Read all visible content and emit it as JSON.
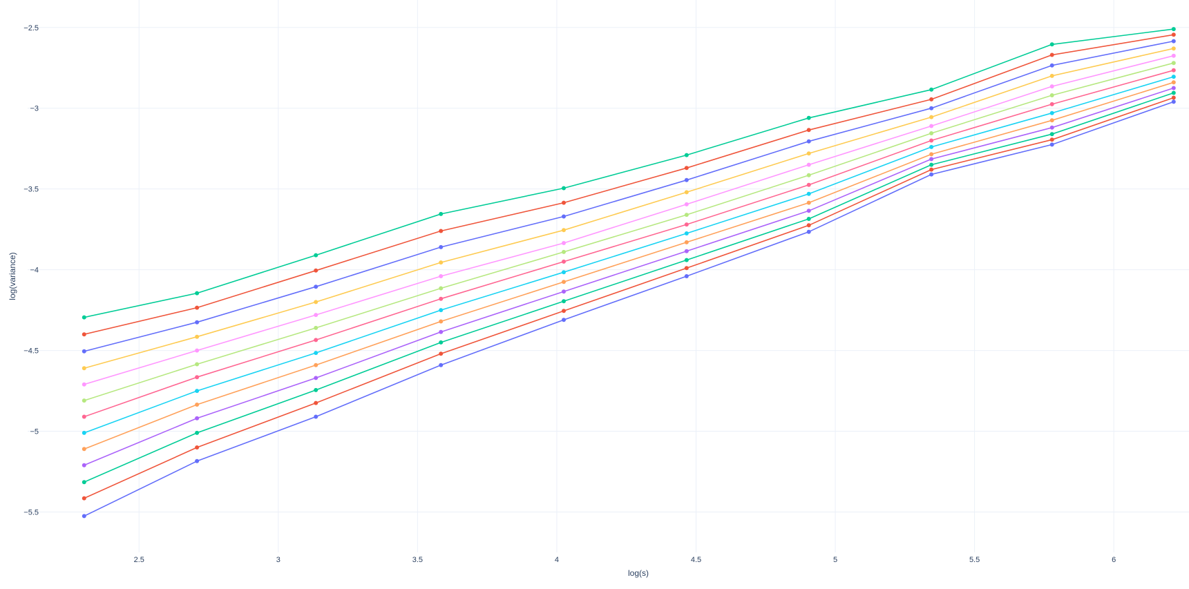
{
  "chart_data": {
    "type": "line",
    "xlabel": "log(s)",
    "ylabel": "log(variance)",
    "xlim": [
      2.1,
      6.27
    ],
    "ylim": [
      -5.75,
      -2.33
    ],
    "x_ticks": [
      2.5,
      3,
      3.5,
      4,
      4.5,
      5,
      5.5,
      6
    ],
    "x_tick_labels": [
      "2.5",
      "3",
      "3.5",
      "4",
      "4.5",
      "5",
      "5.5",
      "6"
    ],
    "y_ticks": [
      -2.5,
      -3,
      -3.5,
      -4,
      -4.5,
      -5,
      -5.5
    ],
    "y_tick_labels": [
      "−2.5",
      "−3",
      "−3.5",
      "−4",
      "−4.5",
      "−5",
      "−5.5"
    ],
    "grid": true,
    "legend": "none",
    "x": [
      2.303,
      2.708,
      3.135,
      3.584,
      4.025,
      4.466,
      4.905,
      5.345,
      5.778,
      6.215
    ],
    "series": [
      {
        "color": "#00cc96",
        "values": [
          -4.295,
          -4.145,
          -3.91,
          -3.655,
          -3.495,
          -3.29,
          -3.06,
          -2.885,
          -2.605,
          -2.51
        ]
      },
      {
        "color": "#ef553b",
        "values": [
          -4.4,
          -4.235,
          -4.005,
          -3.76,
          -3.585,
          -3.37,
          -3.135,
          -2.945,
          -2.67,
          -2.545
        ]
      },
      {
        "color": "#636efa",
        "values": [
          -4.505,
          -4.325,
          -4.105,
          -3.86,
          -3.67,
          -3.445,
          -3.205,
          -3.0,
          -2.735,
          -2.585
        ]
      },
      {
        "color": "#fecb52",
        "values": [
          -4.61,
          -4.415,
          -4.2,
          -3.955,
          -3.755,
          -3.52,
          -3.28,
          -3.055,
          -2.8,
          -2.63
        ]
      },
      {
        "color": "#ff97ff",
        "values": [
          -4.71,
          -4.5,
          -4.28,
          -4.04,
          -3.835,
          -3.595,
          -3.35,
          -3.11,
          -2.865,
          -2.675
        ]
      },
      {
        "color": "#b6e880",
        "values": [
          -4.81,
          -4.585,
          -4.36,
          -4.115,
          -3.89,
          -3.66,
          -3.415,
          -3.155,
          -2.92,
          -2.72
        ]
      },
      {
        "color": "#ff6692",
        "values": [
          -4.91,
          -4.665,
          -4.435,
          -4.18,
          -3.95,
          -3.72,
          -3.475,
          -3.2,
          -2.975,
          -2.765
        ]
      },
      {
        "color": "#19d3f3",
        "values": [
          -5.01,
          -4.75,
          -4.515,
          -4.25,
          -4.015,
          -3.775,
          -3.53,
          -3.24,
          -3.03,
          -2.805
        ]
      },
      {
        "color": "#ffa15a",
        "values": [
          -5.11,
          -4.835,
          -4.59,
          -4.32,
          -4.075,
          -3.83,
          -3.585,
          -3.285,
          -3.075,
          -2.84
        ]
      },
      {
        "color": "#ab63fa",
        "values": [
          -5.21,
          -4.92,
          -4.67,
          -4.385,
          -4.135,
          -3.885,
          -3.635,
          -3.315,
          -3.12,
          -2.875
        ]
      },
      {
        "color": "#00cc96",
        "values": [
          -5.315,
          -5.01,
          -4.745,
          -4.45,
          -4.195,
          -3.94,
          -3.685,
          -3.35,
          -3.16,
          -2.905
        ]
      },
      {
        "color": "#ef553b",
        "values": [
          -5.415,
          -5.1,
          -4.825,
          -4.52,
          -4.255,
          -3.99,
          -3.725,
          -3.38,
          -3.195,
          -2.935
        ]
      },
      {
        "color": "#636efa",
        "values": [
          -5.525,
          -5.185,
          -4.91,
          -4.59,
          -4.31,
          -4.04,
          -3.765,
          -3.41,
          -3.225,
          -2.96
        ]
      }
    ]
  }
}
